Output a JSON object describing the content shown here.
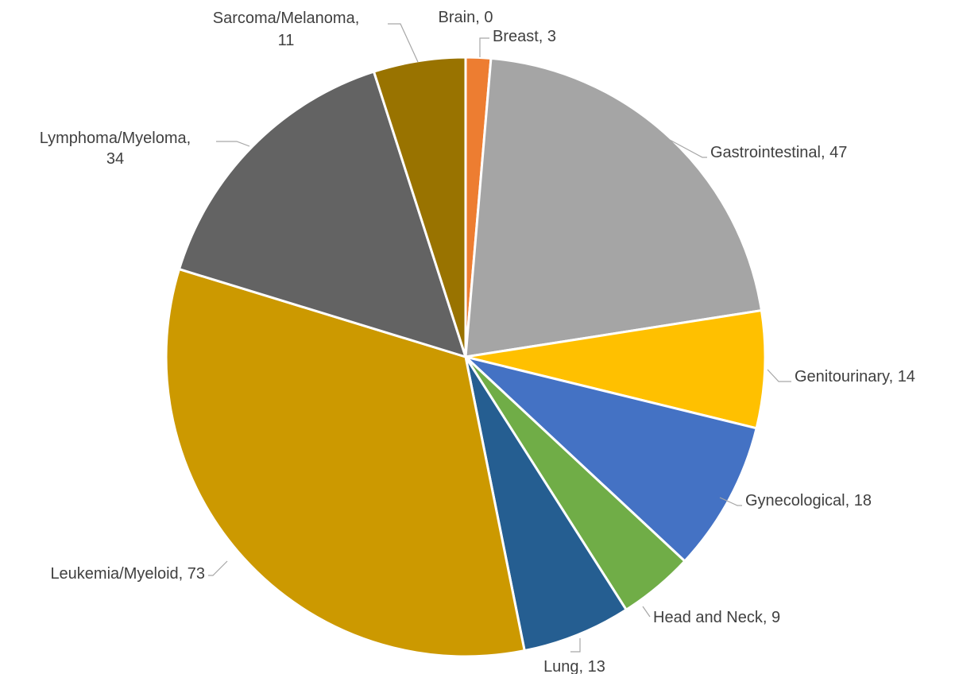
{
  "chart_data": {
    "type": "pie",
    "slices": [
      {
        "name": "Brain",
        "value": 0,
        "color": "#4472c4",
        "label_lines": [
          "Brain, 0"
        ]
      },
      {
        "name": "Breast",
        "value": 3,
        "color": "#ed7d31",
        "label_lines": [
          "Breast, 3"
        ]
      },
      {
        "name": "Gastrointestinal",
        "value": 47,
        "color": "#a5a5a5",
        "label_lines": [
          "Gastrointestinal, 47"
        ]
      },
      {
        "name": "Genitourinary",
        "value": 14,
        "color": "#ffc000",
        "label_lines": [
          "Genitourinary, 14"
        ]
      },
      {
        "name": "Gynecological",
        "value": 18,
        "color": "#4472c4",
        "label_lines": [
          "Gynecological, 18"
        ]
      },
      {
        "name": "Head and Neck",
        "value": 9,
        "color": "#70ad47",
        "label_lines": [
          "Head and Neck, 9"
        ]
      },
      {
        "name": "Lung",
        "value": 13,
        "color": "#255e91",
        "label_lines": [
          "Lung, 13"
        ]
      },
      {
        "name": "Leukemia/Myeloid",
        "value": 73,
        "color": "#cc9900",
        "label_lines": [
          "Leukemia/Myeloid, 73"
        ]
      },
      {
        "name": "Lymphoma/Myeloma",
        "value": 34,
        "color": "#636363",
        "label_lines": [
          "Lymphoma/Myeloma,",
          "34"
        ]
      },
      {
        "name": "Sarcoma/Melanoma",
        "value": 11,
        "color": "#997300",
        "label_lines": [
          "Sarcoma/Melanoma,",
          "11"
        ]
      }
    ]
  }
}
